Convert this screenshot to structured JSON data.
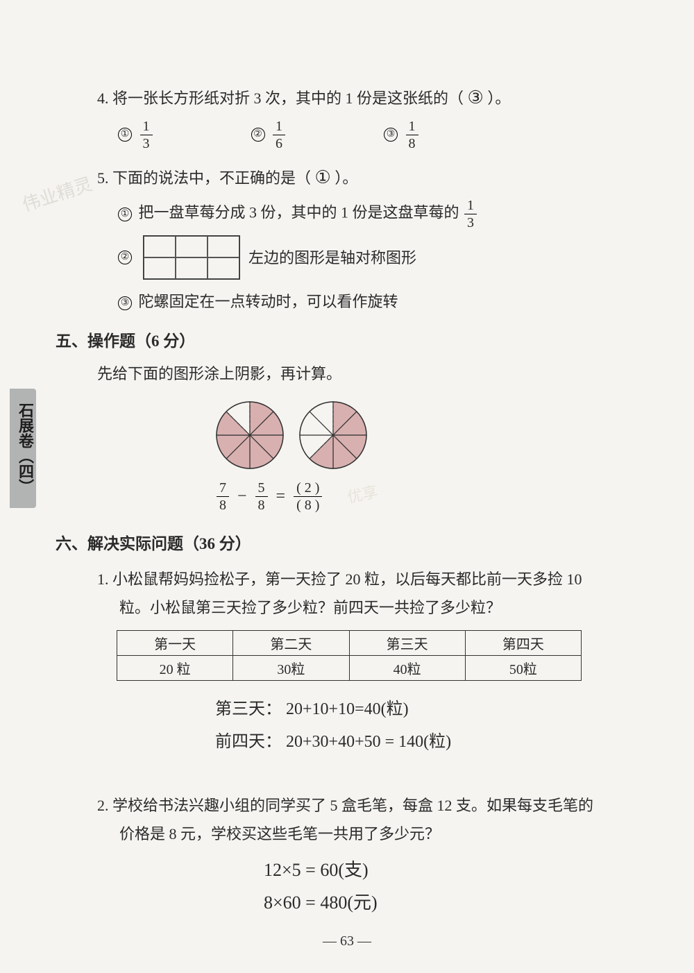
{
  "side_tab": "石展卷（四）",
  "watermark1": "伟业精灵",
  "watermark2": "优享",
  "q4": {
    "stem_prefix": "4. 将一张长方形纸对折 3 次，其中的 1 份是这张纸的（",
    "stem_suffix": "）。",
    "handwritten_answer": "③",
    "options": [
      {
        "circ": "①",
        "num": "1",
        "den": "3"
      },
      {
        "circ": "②",
        "num": "1",
        "den": "6"
      },
      {
        "circ": "③",
        "num": "1",
        "den": "8"
      }
    ]
  },
  "q5": {
    "stem_prefix": "5. 下面的说法中，不正确的是（",
    "stem_suffix": "）。",
    "handwritten_answer": "①",
    "opt1_circ": "①",
    "opt1_text_a": "把一盘草莓分成 3 份，其中的 1 份是这盘草莓的",
    "opt1_frac_num": "1",
    "opt1_frac_den": "3",
    "opt2_circ": "②",
    "opt2_text": "左边的图形是轴对称图形",
    "opt3_circ": "③",
    "opt3_text": "陀螺固定在一点转动时，可以看作旋转"
  },
  "section5": {
    "heading": "五、操作题（6 分）",
    "sub": "先给下面的图形涂上阴影，再计算。",
    "pies": [
      {
        "slices": 8,
        "shaded": 7,
        "shade_color": "#d9b0b0",
        "line_color": "#333",
        "dashed_last": true
      },
      {
        "slices": 8,
        "shaded": 5,
        "shade_color": "#d9b0b0",
        "line_color": "#333",
        "dashed_rest": true
      }
    ],
    "eq": {
      "f1": {
        "num": "7",
        "den": "8"
      },
      "minus": "−",
      "f2": {
        "num": "5",
        "den": "8"
      },
      "equals": "=",
      "res_num_printed_open": "(",
      "res_num_handw": "2",
      "res_num_printed_close": ")",
      "res_den_printed_open": "(",
      "res_den_handw": "8",
      "res_den_printed_close": ")"
    }
  },
  "section6": {
    "heading": "六、解决实际问题（36 分）",
    "p1a": "1. 小松鼠帮妈妈捡松子，第一天捡了 20 粒，以后每天都比前一天多捡 10",
    "p1b": "粒。小松鼠第三天捡了多少粒？前四天一共捡了多少粒？",
    "table_headers": [
      "第一天",
      "第二天",
      "第三天",
      "第四天"
    ],
    "row_printed": "20 粒",
    "row_hand": [
      "30粒",
      "40粒",
      "50粒"
    ],
    "calc1": "第三天： 20+10+10=40(粒)",
    "calc2": "前四天： 20+30+40+50 = 140(粒)",
    "p2a": "2. 学校给书法兴趣小组的同学买了 5 盒毛笔，每盒 12 支。如果每支毛笔的",
    "p2b": "价格是 8 元，学校买这些毛笔一共用了多少元？",
    "calc3": "12×5 = 60(支)",
    "calc4": "8×60 = 480(元)"
  },
  "page_number": "— 63 —"
}
